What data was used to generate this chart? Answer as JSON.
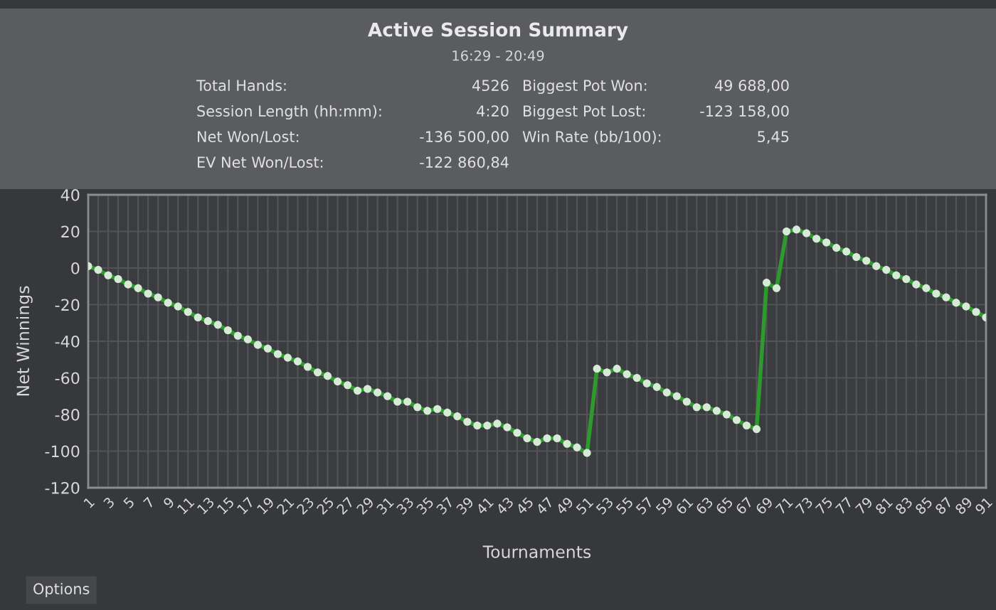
{
  "chart_data": {
    "type": "line",
    "title": "Active Session Summary",
    "subtitle": "16:29 - 20:49",
    "xlabel": "Tournaments",
    "ylabel": "Net Winnings",
    "categories": [
      "1",
      null,
      "3",
      null,
      "5",
      null,
      "7",
      null,
      "9",
      null,
      "11",
      null,
      "13",
      null,
      "15",
      null,
      "17",
      null,
      "19",
      null,
      "21",
      null,
      "23",
      null,
      "25",
      null,
      "27",
      null,
      "29",
      null,
      "31",
      null,
      "33",
      null,
      "35",
      null,
      "37",
      null,
      "39",
      null,
      "41",
      null,
      "43",
      null,
      "45",
      null,
      "47",
      null,
      "49",
      null,
      "51",
      null,
      "53",
      null,
      "55",
      null,
      "57",
      null,
      "59",
      null,
      "61",
      null,
      "63",
      null,
      "65",
      null,
      "67",
      null,
      "69",
      null,
      "71",
      null,
      "73",
      null,
      "75",
      null,
      "77",
      null,
      "79",
      null,
      "81",
      null,
      "83",
      null,
      "85",
      null,
      "87",
      null,
      "89",
      null,
      "91"
    ],
    "series": [
      {
        "color": "#2e9a2e",
        "values": [
          1,
          -1,
          -4,
          -6,
          -9,
          -11,
          -14,
          -16,
          -19,
          -21,
          -24,
          -27,
          -29,
          -31,
          -34,
          -37,
          -39,
          -42,
          -44,
          -47,
          -49,
          -51,
          -54,
          -57,
          -59,
          -62,
          -64,
          -67,
          -66,
          -68,
          -70,
          -73,
          -73,
          -76,
          -78,
          -77,
          -79,
          -81,
          -84,
          -86,
          -86,
          -85,
          -87,
          -90,
          -93,
          -95,
          -93,
          -93,
          -96,
          -98,
          -101,
          -55,
          -57,
          -55,
          -58,
          -60,
          -63,
          -65,
          -68,
          -70,
          -73,
          -76,
          -76,
          -78,
          -80,
          -83,
          -86,
          -88,
          -8,
          -11,
          20,
          21,
          19,
          16,
          14,
          11,
          9,
          6,
          4,
          1,
          -1,
          -4,
          -6,
          -9,
          -11,
          -14,
          -16,
          -19,
          -21,
          -24,
          -27
        ]
      }
    ],
    "ylim": [
      -120,
      40
    ],
    "yticks": [
      -120,
      -100,
      -80,
      -60,
      -40,
      -20,
      0,
      20,
      40
    ],
    "grid": true,
    "marker": "circle",
    "line_style": "solid",
    "annotations": [
      "Total Hands:",
      "4526",
      "Biggest Pot Won:",
      "49 688,00",
      "Session Length (hh:mm):",
      "4:20",
      "Biggest Pot Lost:",
      "-123 158,00",
      "Net Won/Lost:",
      "-136 500,00",
      "Win Rate (bb/100):",
      "5,45",
      "EV Net Won/Lost:",
      "-122 860,84",
      "Options"
    ]
  }
}
